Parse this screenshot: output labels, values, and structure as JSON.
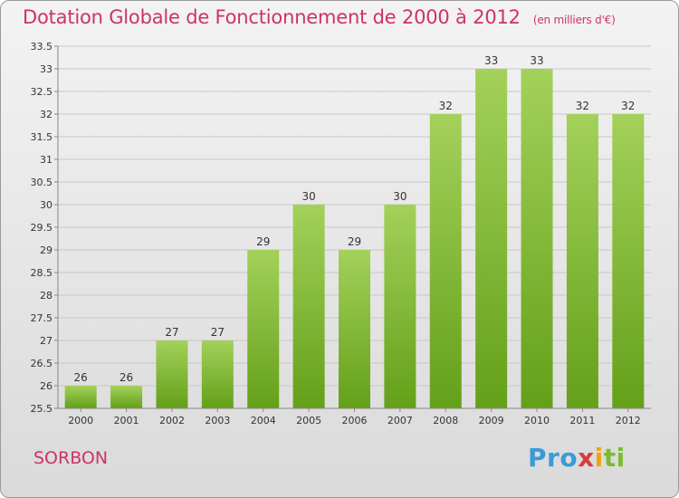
{
  "header": {
    "title": "Dotation Globale de Fonctionnement de 2000 à 2012",
    "subtitle": "(en milliers d'€)"
  },
  "footer": {
    "commune": "SORBON",
    "logo_parts": [
      "Pro",
      "x",
      "i",
      "ti"
    ]
  },
  "colors": {
    "title": "#cc3366",
    "bar_top": "#a3d15a",
    "bar_bottom": "#64a019",
    "grid": "#c8c8c8"
  },
  "chart_data": {
    "type": "bar",
    "categories": [
      "2000",
      "2001",
      "2002",
      "2003",
      "2004",
      "2005",
      "2006",
      "2007",
      "2008",
      "2009",
      "2010",
      "2011",
      "2012"
    ],
    "values": [
      26,
      26,
      27,
      27,
      29,
      30,
      29,
      30,
      32,
      33,
      33,
      32,
      32
    ],
    "data_labels": [
      "26",
      "26",
      "27",
      "27",
      "29",
      "30",
      "29",
      "30",
      "32",
      "33",
      "33",
      "32",
      "32"
    ],
    "ylim": [
      25.5,
      33.5
    ],
    "yticks": [
      "25.5",
      "26",
      "26.5",
      "27",
      "27.5",
      "28",
      "28.5",
      "29",
      "29.5",
      "30",
      "30.5",
      "31",
      "31.5",
      "32",
      "32.5",
      "33",
      "33.5"
    ],
    "grid": true,
    "legend": "none"
  }
}
